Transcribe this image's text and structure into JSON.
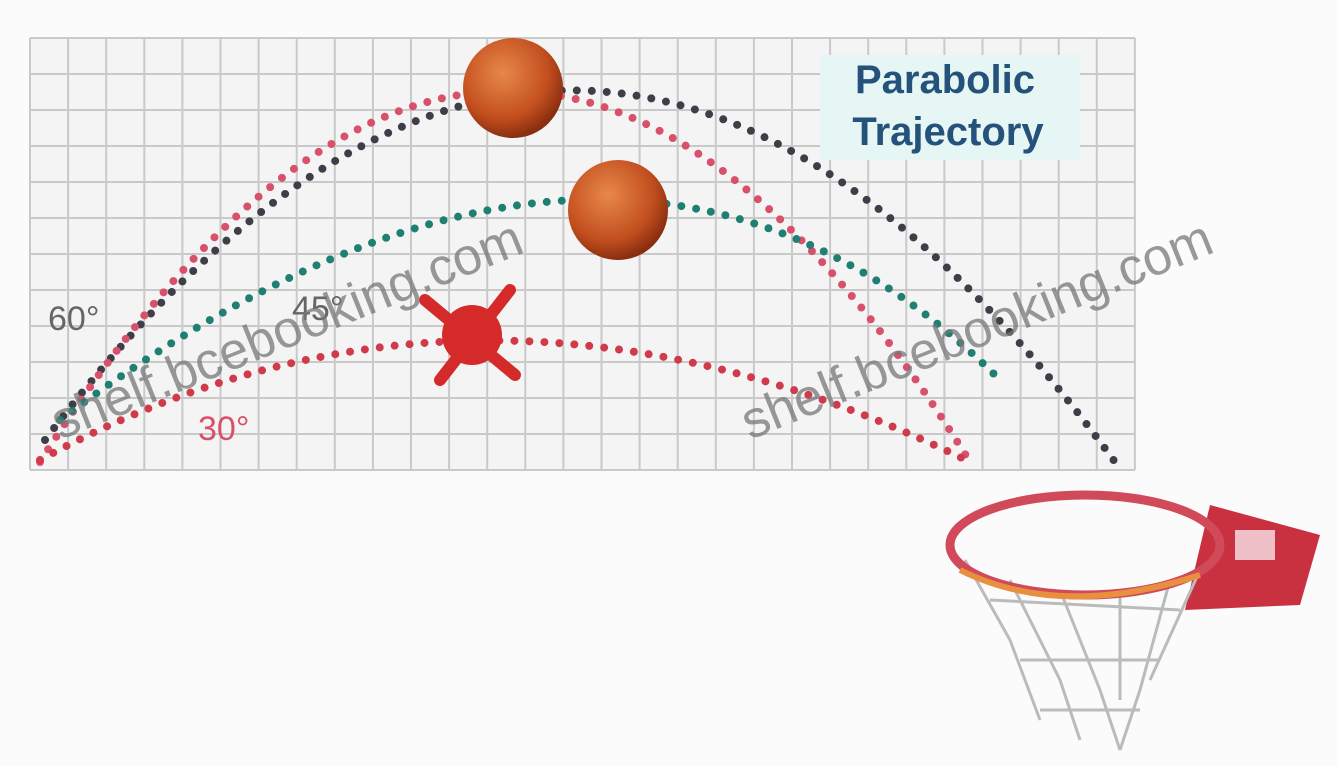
{
  "title": {
    "line1": "Parabolic",
    "line2": "Trajectory"
  },
  "angles": [
    "60°",
    "45°",
    "30°"
  ],
  "watermarks": [
    "shelf.bcebooking.com",
    "shelf.bcebooking.com"
  ]
}
